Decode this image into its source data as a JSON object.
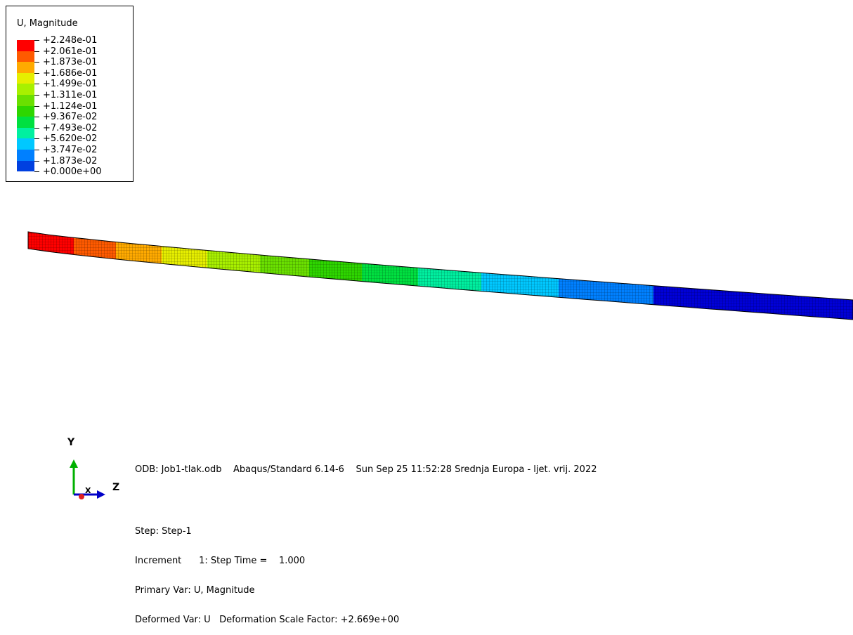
{
  "legend": {
    "title": "U, Magnitude",
    "labels": [
      "+2.248e-01",
      "+2.061e-01",
      "+1.873e-01",
      "+1.686e-01",
      "+1.499e-01",
      "+1.311e-01",
      "+1.124e-01",
      "+9.367e-02",
      "+7.493e-02",
      "+5.620e-02",
      "+3.747e-02",
      "+1.873e-02",
      "+0.000e+00"
    ],
    "colors": [
      "#ff0000",
      "#ff5a00",
      "#ffaa00",
      "#e6ee00",
      "#a8f000",
      "#6ae000",
      "#2ed600",
      "#00e040",
      "#00f0a0",
      "#00c8ff",
      "#0080ff",
      "#0040e0",
      "#0000d8"
    ]
  },
  "triad": {
    "y_label": "Y",
    "z_label": "Z",
    "x_label": "X"
  },
  "info": {
    "odb": "ODB: Job1-tlak.odb    Abaqus/Standard 6.14-6    Sun Sep 25 11:52:28 Srednja Europa - ljet. vrij. 2022",
    "step": "Step: Step-1",
    "increment": "Increment      1: Step Time =    1.000",
    "primary": "Primary Var: U, Magnitude",
    "deformed": "Deformed Var: U   Deformation Scale Factor: +2.669e+00"
  }
}
